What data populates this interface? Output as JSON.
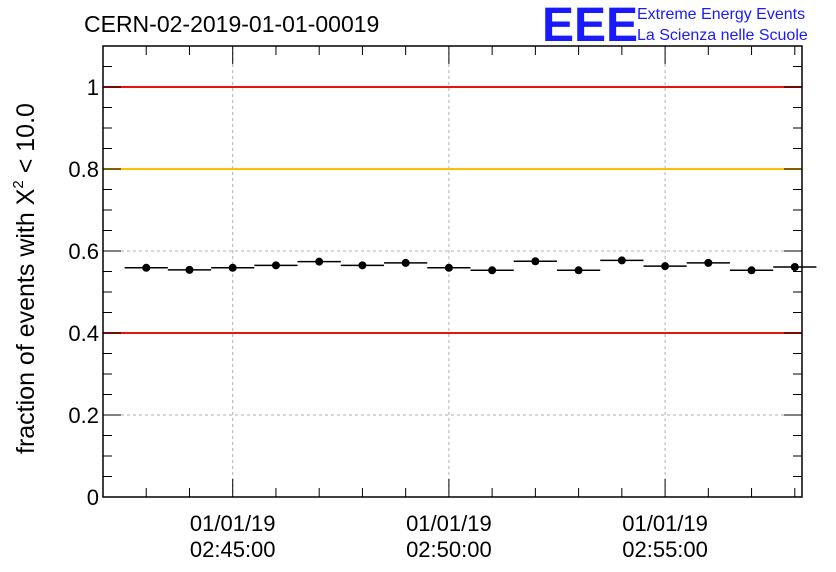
{
  "chart_data": {
    "type": "scatter",
    "title": "CERN-02-2019-01-01-00019",
    "ylabel": {
      "prefix": "fraction of events with ",
      "symbol": "X",
      "superscript": "2",
      "suffix": " < 10.0"
    },
    "xlabel": "",
    "ylim": [
      0,
      1.1
    ],
    "y_ticks": [
      "0",
      "0.2",
      "0.4",
      "0.6",
      "0.8",
      "1"
    ],
    "x_tick_labels": [
      {
        "date": "01/01/19",
        "time": "02:45:00"
      },
      {
        "date": "01/01/19",
        "time": "02:50:00"
      },
      {
        "date": "01/01/19",
        "time": "02:55:00"
      }
    ],
    "grid": true,
    "reference_lines": [
      {
        "y": 1.0,
        "color": "#e8140e"
      },
      {
        "y": 0.8,
        "color": "#ffc000"
      },
      {
        "y": 0.4,
        "color": "#e8140e"
      }
    ],
    "series": [
      {
        "marker_color": "#000000",
        "x_time_bins_start": [
          "02:42:30",
          "02:43:30",
          "02:44:30",
          "02:45:30",
          "02:46:30",
          "02:47:30",
          "02:48:30",
          "02:49:30",
          "02:50:30",
          "02:51:30",
          "02:52:30",
          "02:53:30",
          "02:54:30",
          "02:55:30",
          "02:56:30",
          "02:57:30"
        ],
        "values": [
          0.559,
          0.554,
          0.559,
          0.565,
          0.574,
          0.565,
          0.571,
          0.559,
          0.553,
          0.575,
          0.553,
          0.577,
          0.563,
          0.571,
          0.553,
          0.561
        ]
      }
    ]
  },
  "logo": {
    "mark": "EEE",
    "line1": "Extreme Energy Events",
    "line2": "La Scienza nelle Scuole"
  }
}
